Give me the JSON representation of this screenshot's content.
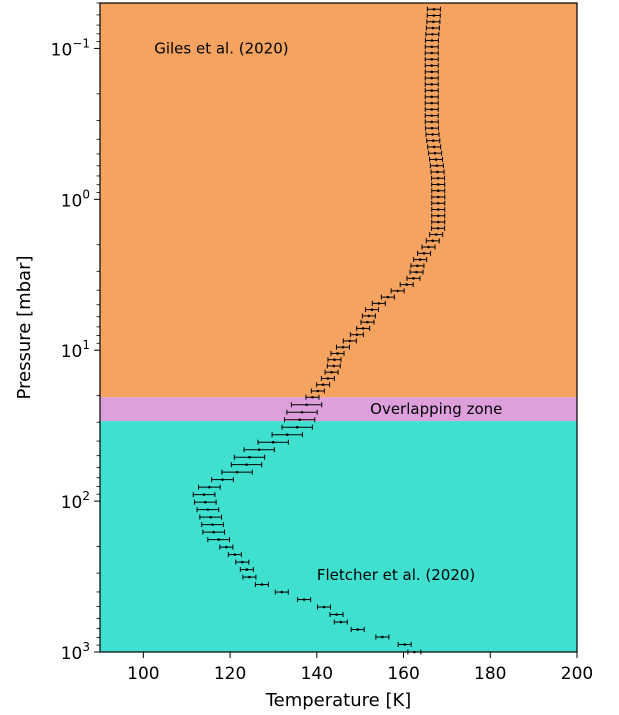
{
  "chart_data": {
    "type": "scatter",
    "xlabel": "Temperature [K]",
    "ylabel": "Pressure [mbar]",
    "xlim": [
      90,
      200
    ],
    "ylim": [
      1000,
      0.05
    ],
    "yscale": "log",
    "grid": false,
    "xticks": [
      100,
      120,
      140,
      160,
      180,
      200
    ],
    "xtick_labels": [
      "100",
      "120",
      "140",
      "160",
      "180",
      "200"
    ],
    "yticks": [
      0.1,
      1,
      10,
      100,
      1000
    ],
    "ytick_labels": [
      {
        "base": "10",
        "exp": "−1"
      },
      {
        "base": "10",
        "exp": "0"
      },
      {
        "base": "10",
        "exp": "1"
      },
      {
        "base": "10",
        "exp": "2"
      },
      {
        "base": "10",
        "exp": "3"
      }
    ],
    "regions": [
      {
        "label": "Giles et al. (2020)",
        "p_top": 0.05,
        "p_bottom": 20.5,
        "color": "#f4a460"
      },
      {
        "label": "Overlapping zone",
        "p_top": 20.5,
        "p_bottom": 29.5,
        "color": "#dda0dd"
      },
      {
        "label": "Fletcher et al. (2020)",
        "p_top": 29.5,
        "p_bottom": 1000,
        "color": "#40e0d0"
      }
    ],
    "profile_nodes": [
      {
        "p": 0.055,
        "t": 167.0
      },
      {
        "p": 0.1,
        "t": 166.5
      },
      {
        "p": 0.3,
        "t": 166.5
      },
      {
        "p": 0.8,
        "t": 168.0
      },
      {
        "p": 1.5,
        "t": 168.0
      },
      {
        "p": 3.0,
        "t": 163.0
      },
      {
        "p": 6.0,
        "t": 152.0
      },
      {
        "p": 12.0,
        "t": 144.0
      },
      {
        "p": 30.0,
        "t": 136.0
      },
      {
        "p": 55.0,
        "t": 124.0
      },
      {
        "p": 90.0,
        "t": 114.0
      },
      {
        "p": 150.0,
        "t": 116.0
      },
      {
        "p": 300.0,
        "t": 124.0
      },
      {
        "p": 600.0,
        "t": 145.0
      },
      {
        "p": 1000.0,
        "t": 162.5
      }
    ],
    "errors": [
      {
        "p_max": 20.5,
        "err": 1.5
      },
      {
        "p_max": 70,
        "err": 3.5
      },
      {
        "p_max": 200,
        "err": 2.5
      },
      {
        "p_max": 1000,
        "err": 1.5
      }
    ]
  }
}
